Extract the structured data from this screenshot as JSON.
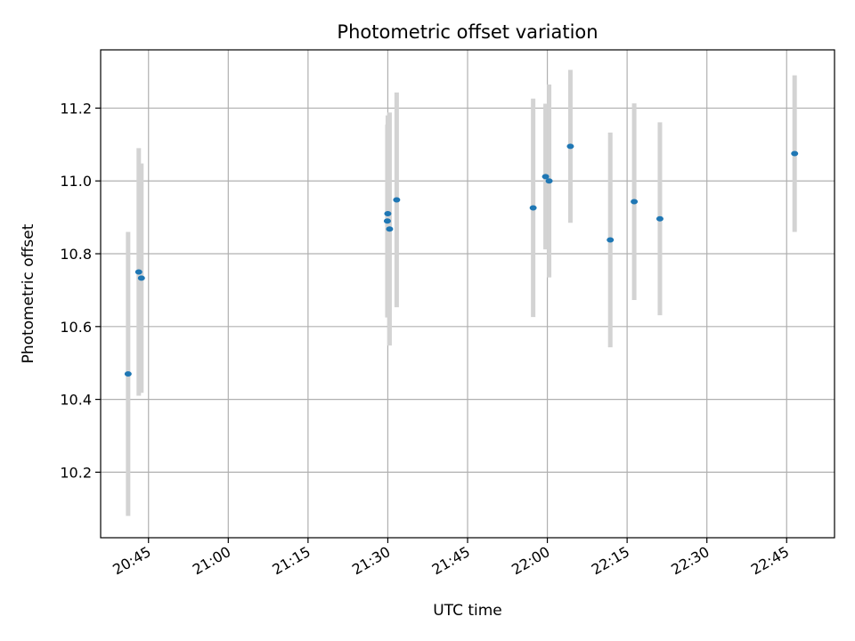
{
  "chart_data": {
    "type": "scatter",
    "title": "Photometric offset variation",
    "xlabel": "UTC time",
    "ylabel": "Photometric offset",
    "xlim": [
      "20:36",
      "22:54"
    ],
    "ylim": [
      10.02,
      11.36
    ],
    "xticks": [
      "20:45",
      "21:00",
      "21:15",
      "21:30",
      "21:45",
      "22:00",
      "22:15",
      "22:30",
      "22:45"
    ],
    "yticks": [
      "10.2",
      "10.4",
      "10.6",
      "10.8",
      "11.0",
      "11.2"
    ],
    "grid": true,
    "colors": {
      "marker": "#1f77b4",
      "errorbar": "#d3d3d3",
      "grid": "#b0b0b0"
    },
    "points": [
      {
        "t": "20:41:10",
        "y": 10.47,
        "yerr": 0.39
      },
      {
        "t": "20:43:10",
        "y": 10.75,
        "yerr": 0.34
      },
      {
        "t": "20:43:40",
        "y": 10.733,
        "yerr": 0.315
      },
      {
        "t": "21:29:55",
        "y": 10.89,
        "yerr": 0.265
      },
      {
        "t": "21:30:00",
        "y": 10.91,
        "yerr": 0.27
      },
      {
        "t": "21:30:20",
        "y": 10.868,
        "yerr": 0.32
      },
      {
        "t": "21:31:40",
        "y": 10.948,
        "yerr": 0.295
      },
      {
        "t": "21:57:20",
        "y": 10.926,
        "yerr": 0.3
      },
      {
        "t": "21:59:40",
        "y": 11.012,
        "yerr": 0.2
      },
      {
        "t": "22:00:20",
        "y": 11.0,
        "yerr": 0.265
      },
      {
        "t": "22:04:20",
        "y": 11.095,
        "yerr": 0.21
      },
      {
        "t": "22:11:50",
        "y": 10.838,
        "yerr": 0.295
      },
      {
        "t": "22:16:20",
        "y": 10.943,
        "yerr": 0.27
      },
      {
        "t": "22:21:10",
        "y": 10.896,
        "yerr": 0.265
      },
      {
        "t": "22:46:30",
        "y": 11.075,
        "yerr": 0.215
      }
    ]
  }
}
